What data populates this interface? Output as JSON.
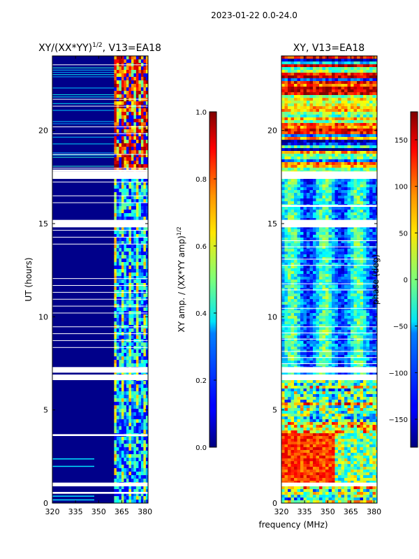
{
  "header": {
    "date_range": "2023-01-22 0.0-24.0"
  },
  "chart_data": [
    {
      "type": "heatmap",
      "title": "XY/(XX*YY)^1/2, V13=EA18",
      "title_main": "XY/(XX*YY)",
      "title_exp": "1/2",
      "title_suffix": ", V13=EA18",
      "xlabel": "frequency (MHz)",
      "ylabel": "UT (hours)",
      "xlim": [
        320,
        382
      ],
      "ylim": [
        0,
        24
      ],
      "xticks": [
        320,
        335,
        350,
        365,
        380
      ],
      "yticks": [
        0,
        5,
        10,
        15,
        20
      ],
      "colorbar": {
        "label_main": "XY amp. / (XX*YY amp)",
        "label_exp": "1/2",
        "range": [
          0.0,
          1.0
        ],
        "ticks": [
          "0.0",
          "0.2",
          "0.4",
          "0.6",
          "0.8",
          "1.0"
        ],
        "colormap": "jet"
      },
      "gaps_ut": [
        0.9,
        1.1,
        6.6,
        6.9,
        7.2,
        8.5,
        15.0,
        15.3,
        17.6,
        17.9,
        21.0,
        18.8
      ],
      "bright_channel_band_mhz": [
        360,
        382
      ]
    },
    {
      "type": "heatmap",
      "title": "XY, V13=EA18",
      "xlabel": "frequency (MHz)",
      "ylabel": "",
      "xlim": [
        320,
        382
      ],
      "ylim": [
        0,
        24
      ],
      "xticks": [
        320,
        335,
        350,
        365,
        380
      ],
      "yticks": [
        0,
        5,
        10,
        15,
        20
      ],
      "colorbar": {
        "label": "phase (deg)",
        "range": [
          -180,
          180
        ],
        "ticks": [
          "150",
          "100",
          "50",
          "0",
          "−50",
          "−100",
          "−150"
        ],
        "colormap": "jet"
      }
    }
  ]
}
